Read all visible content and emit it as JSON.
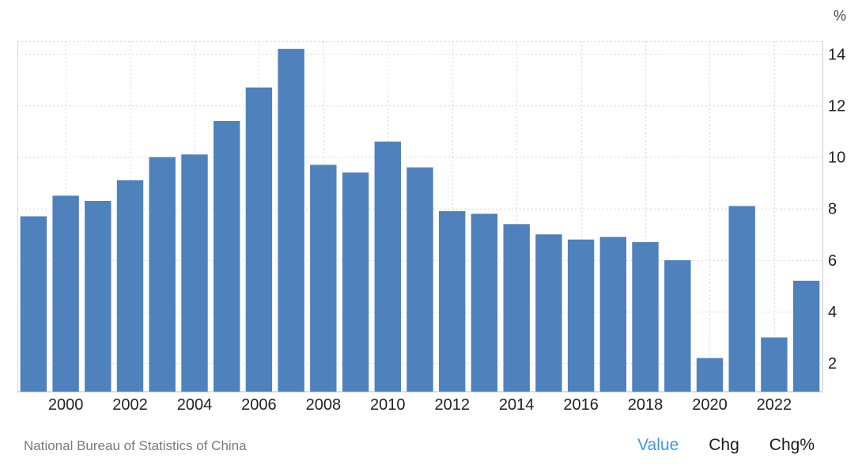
{
  "chart_data": {
    "type": "bar",
    "unit": "%",
    "x": [
      1999,
      2000,
      2001,
      2002,
      2003,
      2004,
      2005,
      2006,
      2007,
      2008,
      2009,
      2010,
      2011,
      2012,
      2013,
      2014,
      2015,
      2016,
      2017,
      2018,
      2019,
      2020,
      2021,
      2022,
      2023
    ],
    "values": [
      7.7,
      8.5,
      8.3,
      9.1,
      10.0,
      10.1,
      11.4,
      12.7,
      14.2,
      9.7,
      9.4,
      10.6,
      9.6,
      7.9,
      7.8,
      7.4,
      7.0,
      6.8,
      6.9,
      6.7,
      6.0,
      2.2,
      8.1,
      3.0,
      5.2
    ],
    "x_tick_labels": [
      "2000",
      "2002",
      "2004",
      "2006",
      "2008",
      "2010",
      "2012",
      "2014",
      "2016",
      "2018",
      "2020",
      "2022"
    ],
    "y_tick_labels": [
      "2",
      "4",
      "6",
      "8",
      "10",
      "12",
      "14"
    ],
    "ylim": [
      0.9,
      14.5
    ],
    "y_axis_side": "right",
    "bar_color": "#4f81bd",
    "grid": true
  },
  "footer": {
    "source": "National Bureau of Statistics of China",
    "tabs": [
      {
        "label": "Value",
        "active": true
      },
      {
        "label": "Chg",
        "active": false
      },
      {
        "label": "Chg%",
        "active": false
      }
    ]
  },
  "colors": {
    "active_tab": "#3d9ae8",
    "grid": "#d9d9d9"
  }
}
